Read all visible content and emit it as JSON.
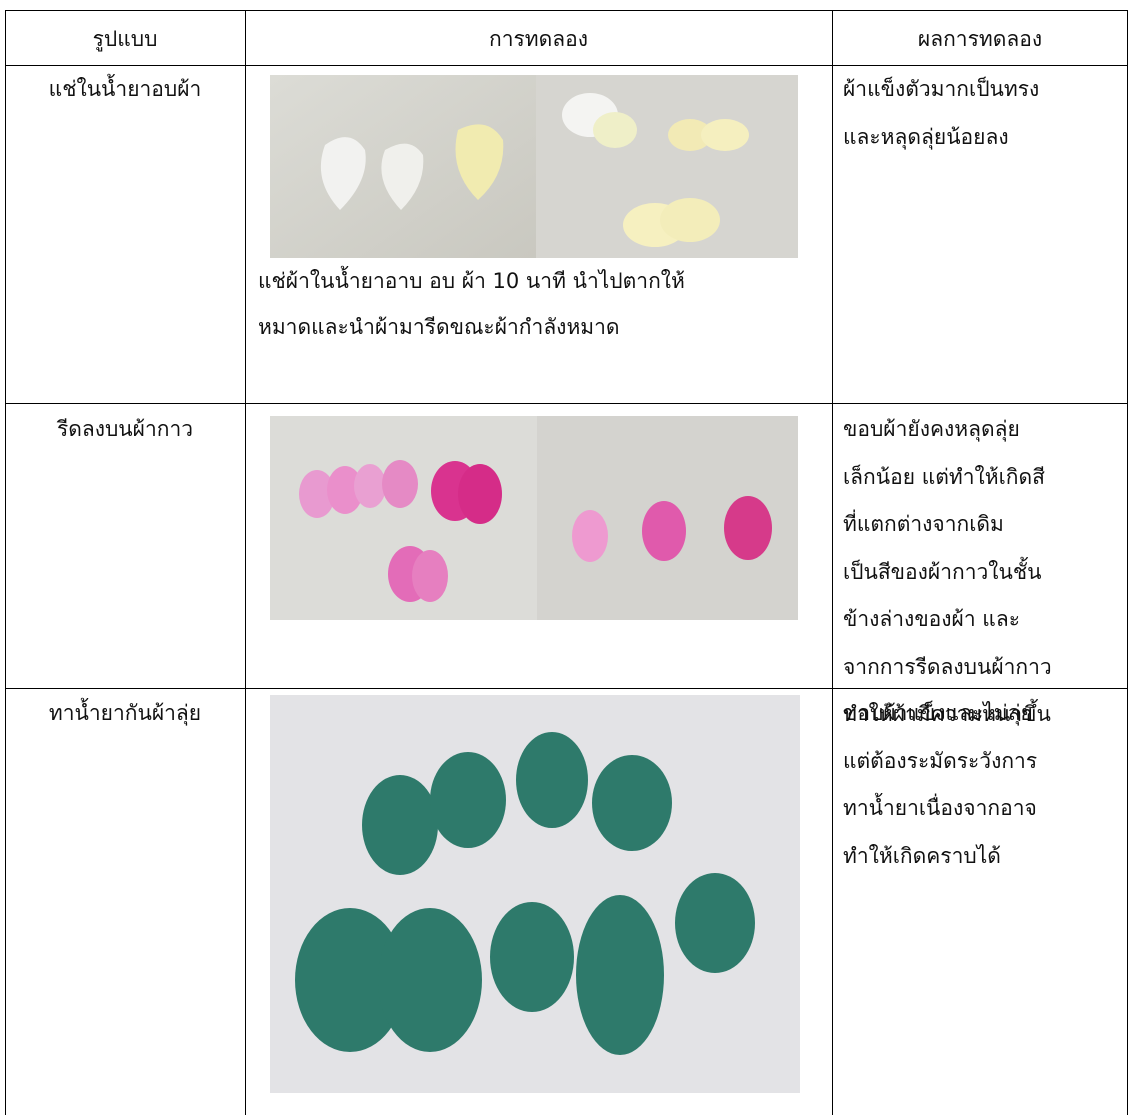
{
  "table": {
    "header": [
      "รูปแบบ",
      "การทดลอง",
      "ผลการทดลอง"
    ],
    "rows": [
      {
        "format": "แช่ในน้ำยาอบผ้า",
        "caption": [
          "แช่ผ้าในน้ำยาอาบ อบ ผ้า 10 นาที นำไปตากให้",
          "หมาดและนำผ้ามารีดขณะผ้ากำลังหมาด"
        ],
        "result": [
          "ผ้าแข็งตัวมากเป็นทรง",
          "และหลุดลุ่ยน้อยลง"
        ]
      },
      {
        "format": "รีดลงบนผ้ากาว",
        "caption": [],
        "result": [
          "ขอบผ้ายังคงหลุดลุ่ย",
          "เล็กน้อย แต่ทำให้เกิดสี",
          "ที่แตกต่างจากเดิม",
          "เป็นสีของผ้ากาวในชั้น",
          "ข้างล่างของผ้า และ",
          "จากการรีดลงบนผ้ากาว",
          "ทำให้ผ้ามีความหนาขึ้น"
        ]
      },
      {
        "format": "ทาน้ำยากันผ้าลุ่ย",
        "caption": [],
        "result": [
          "ขอบผ้าแข็งและไม่ลุ่ย",
          "แต่ต้องระมัดระวังการ",
          "ทาน้ำยาเนื่องจากอาจ",
          "ทำให้เกิดคราบได้"
        ]
      }
    ]
  }
}
